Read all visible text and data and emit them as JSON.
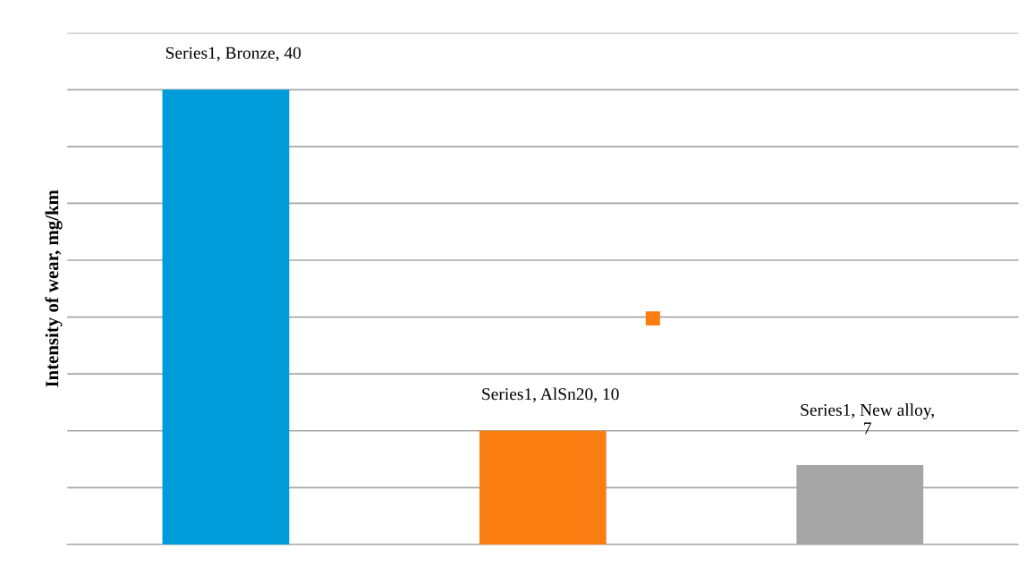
{
  "chart_data": {
    "type": "bar",
    "ylabel": "Intensity of wear, mg/km",
    "categories": [
      null,
      null,
      null
    ],
    "series": [
      {
        "color": null,
        "colors": [
          "#009bd9",
          "#fb7e13",
          "#a5a5a5"
        ],
        "values": [
          40,
          10,
          7
        ],
        "value_labels": [
          "Series1, Bronze, 40",
          "Series1, AlSn20, 10",
          "Series1, New alloy,\n7"
        ]
      }
    ],
    "ylim": [
      0,
      45
    ],
    "yticks": [
      {
        "value": 0,
        "label": null
      },
      {
        "value": 5,
        "label": null
      },
      {
        "value": 10,
        "label": null
      },
      {
        "value": 15,
        "label": null
      },
      {
        "value": 20,
        "label": null
      },
      {
        "value": 25,
        "label": null
      },
      {
        "value": 30,
        "label": null
      },
      {
        "value": 35,
        "label": null
      },
      {
        "value": 40,
        "label": null
      },
      {
        "value": 45,
        "label": null
      }
    ],
    "grid": "y",
    "tick_labels": false
  }
}
